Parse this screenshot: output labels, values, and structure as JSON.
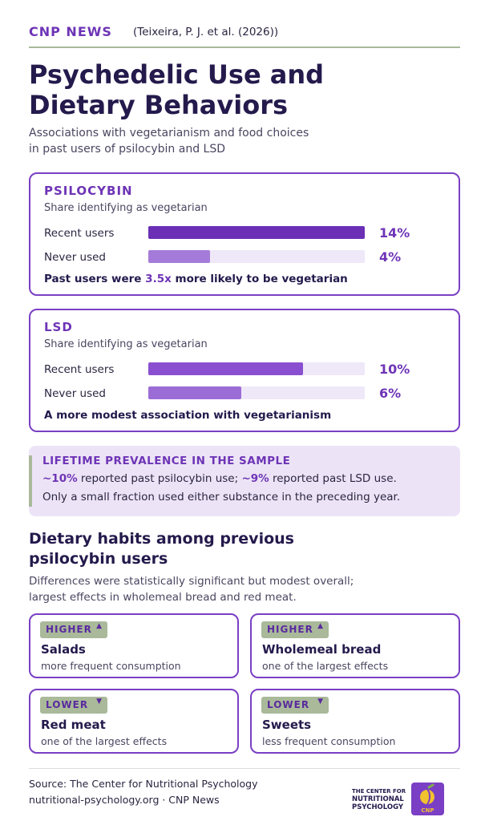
{
  "header": {
    "brand": "CNP NEWS",
    "citation": "(Teixeira, P. J. et al. (2026))"
  },
  "title_line1": "Psychedelic Use and",
  "title_line2": "Dietary Behaviors",
  "subtitle_line1": "Associations with vegetarianism and food choices",
  "subtitle_line2": "in past users of psilocybin and LSD",
  "colors": {
    "accent": "#6e34b6",
    "sage": "#a9b99a",
    "navy": "#241a4c",
    "callout_bg": "#ece4f6"
  },
  "chart_data": [
    {
      "type": "bar",
      "title": "PSILOCYBIN",
      "subtitle": "Share identifying as vegetarian",
      "categories": [
        "Recent users",
        "Never used"
      ],
      "values": [
        14,
        4
      ],
      "value_labels": [
        "14%",
        "4%"
      ],
      "ylim": [
        0,
        14
      ]
    },
    {
      "type": "bar",
      "title": "LSD",
      "subtitle": "Share identifying as vegetarian",
      "categories": [
        "Recent users",
        "Never used"
      ],
      "values": [
        10,
        6
      ],
      "value_labels": [
        "10%",
        "6%"
      ],
      "ylim": [
        0,
        14
      ]
    }
  ],
  "psilocybin_note": {
    "pre": "Past users were ",
    "highlight": "3.5x",
    "post": " more likely to be vegetarian"
  },
  "lsd_note": "A more modest association with vegetarianism",
  "callout": {
    "title": "LIFETIME PREVALENCE IN THE SAMPLE",
    "psi_pct": "~10%",
    "psi_text": " reported past psilocybin use; ",
    "lsd_pct": "~9%",
    "lsd_text": " reported past LSD use.",
    "line2": "Only a small fraction used either substance in the preceding year."
  },
  "section": {
    "title_line1": "Dietary habits among previous",
    "title_line2": "psilocybin users",
    "sub_line1": "Differences were statistically significant but modest overall;",
    "sub_line2": "largest effects in wholemeal bread and red meat."
  },
  "habits": [
    {
      "badge": "HIGHER",
      "arrow": "▲",
      "name": "Salads",
      "desc": "more frequent consumption"
    },
    {
      "badge": "HIGHER",
      "arrow": "▲",
      "name": "Wholemeal bread",
      "desc": "one of the largest effects"
    },
    {
      "badge": "LOWER",
      "arrow": "▼",
      "name": "Red meat",
      "desc": "one of the largest effects"
    },
    {
      "badge": "LOWER",
      "arrow": "▼",
      "name": "Sweets",
      "desc": "less frequent consumption"
    }
  ],
  "footer": {
    "source": "Source: The Center for Nutritional Psychology",
    "site": "nutritional-psychology.org · CNP News",
    "logo_line1": "THE CENTER FOR",
    "logo_line2": "NUTRITIONAL",
    "logo_line3": "PSYCHOLOGY",
    "logo_icon_text": "CNP"
  }
}
